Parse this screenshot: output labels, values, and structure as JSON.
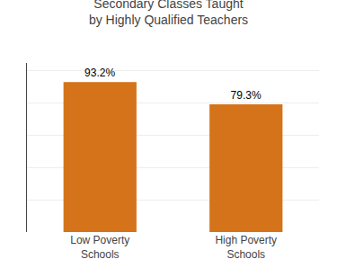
{
  "chart_data": {
    "type": "bar",
    "title": "Secondary Classes Taught\nby Highly Qualified Teachers",
    "categories": [
      "Low Poverty\nSchools",
      "High Poverty\nSchools"
    ],
    "values": [
      93.2,
      79.3
    ],
    "value_labels": [
      "93.2%",
      "79.3%"
    ],
    "data_labels": true,
    "color": "#D4731A",
    "ylim": [
      0,
      105
    ],
    "yticks": [
      0,
      20,
      40,
      60,
      80,
      100
    ],
    "grid": true,
    "tick_labels": "x"
  }
}
